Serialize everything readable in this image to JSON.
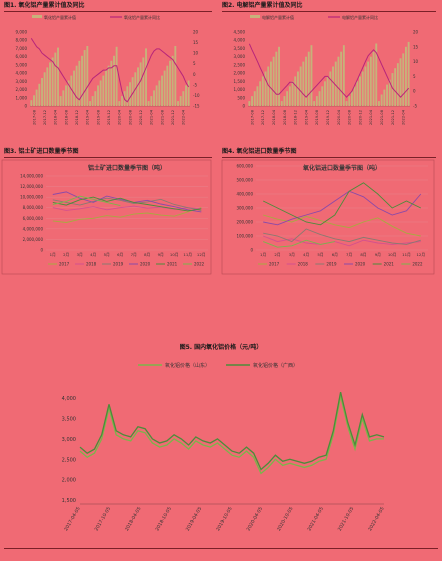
{
  "colors": {
    "background": "#f06a74",
    "bar": "#c7b27a",
    "line_magenta": "#b8257a",
    "line_pink": "#d4508e",
    "green_main": "#7ab64a",
    "green_dark": "#4c8c3a",
    "purple": "#8c4aa8",
    "olive": "#a8aa40",
    "gray": "#8a7a70"
  },
  "chart_data": [
    {
      "type": "bar",
      "title": "图1. 氧化铝产量累计值及同比",
      "legend": [
        "氧化铝产量累计值",
        "氧化铝产量累计同比"
      ],
      "y_left_ticks": [
        "9,000",
        "8,000",
        "7,000",
        "6,000",
        "5,000",
        "4,000",
        "3,000",
        "2,000",
        "1,000",
        "0"
      ],
      "y_right_ticks": [
        "20",
        "15",
        "10",
        "5",
        "0",
        "-5",
        "-10",
        "-15"
      ],
      "x_ticks": [
        "2017-08",
        "2017-12",
        "2018-04",
        "2018-08",
        "2018-12",
        "2019-04",
        "2019-08",
        "2019-12",
        "2020-04",
        "2020-08",
        "2020-12",
        "2021-04",
        "2021-08",
        "2021-12",
        "2022-04"
      ],
      "ylim": [
        0,
        9000
      ],
      "y2lim": [
        -15,
        20
      ],
      "bars": [
        700,
        1300,
        2000,
        2700,
        3400,
        4100,
        4700,
        5300,
        5900,
        6500,
        7100,
        1200,
        1900,
        2500,
        3100,
        3700,
        4300,
        4900,
        5500,
        6100,
        6800,
        7300,
        600,
        1200,
        1800,
        2500,
        3100,
        3700,
        4300,
        4900,
        5500,
        6100,
        7200,
        600,
        1200,
        1800,
        2400,
        2900,
        3500,
        4100,
        4700,
        5300,
        5900,
        7000,
        600,
        1200,
        1900,
        2500,
        3100,
        3700,
        4300,
        4900,
        5500,
        6100,
        7300,
        600,
        1200,
        1800,
        2500,
        3100
      ],
      "line": [
        17,
        15,
        13,
        12,
        10,
        9,
        8,
        7,
        6,
        4,
        3,
        1,
        -1,
        -3,
        -5,
        -7,
        -9,
        -11,
        -12,
        -10,
        -8,
        -6,
        -4,
        -2,
        -1,
        0,
        1,
        2,
        2,
        3,
        3,
        4,
        4,
        -2,
        -8,
        -12,
        -13,
        -11,
        -9,
        -7,
        -5,
        -3,
        0,
        3,
        6,
        9,
        11,
        12,
        12,
        11,
        10,
        9,
        8,
        7,
        5,
        3,
        1,
        -1,
        -4,
        -6
      ]
    },
    {
      "type": "bar",
      "title": "图2. 电解铝产量累计值及同比",
      "legend": [
        "电解铝产量累计值",
        "电解铝产量累计同比"
      ],
      "y_left_ticks": [
        "4,500",
        "4,000",
        "3,500",
        "3,000",
        "2,500",
        "2,000",
        "1,500",
        "1,000",
        "500",
        "0"
      ],
      "y_right_ticks": [
        "20",
        "15",
        "10",
        "5",
        "0",
        "-5"
      ],
      "x_ticks": [
        "2017-08",
        "2017-12",
        "2018-04",
        "2018-08",
        "2018-12",
        "2019-04",
        "2019-08",
        "2019-12",
        "2020-04",
        "2020-08",
        "2020-12",
        "2021-04",
        "2021-08",
        "2021-12",
        "2022-04"
      ],
      "ylim": [
        0,
        4500
      ],
      "y2lim": [
        -5,
        20
      ],
      "bars": [
        300,
        600,
        900,
        1200,
        1500,
        1800,
        2100,
        2400,
        2700,
        3000,
        3300,
        3600,
        300,
        600,
        900,
        1200,
        1500,
        1800,
        2100,
        2400,
        2700,
        3000,
        3300,
        3700,
        300,
        600,
        900,
        1200,
        1500,
        1800,
        2100,
        2400,
        2700,
        3000,
        3300,
        3700,
        300,
        600,
        900,
        1200,
        1500,
        1800,
        2100,
        2400,
        2700,
        3000,
        3300,
        3800,
        300,
        700,
        1000,
        1300,
        1600,
        2000,
        2300,
        2600,
        2900,
        3200,
        3600,
        3900
      ],
      "line": [
        16,
        14,
        12,
        10,
        8,
        6,
        4,
        2,
        1,
        0,
        -1,
        -1,
        0,
        1,
        2,
        3,
        3,
        2,
        1,
        0,
        -1,
        -2,
        -1,
        0,
        1,
        2,
        3,
        4,
        5,
        5,
        4,
        3,
        2,
        1,
        0,
        -1,
        -2,
        -1,
        0,
        2,
        4,
        6,
        8,
        10,
        12,
        13,
        14,
        13,
        11,
        9,
        7,
        5,
        3,
        1,
        0,
        -1,
        -2,
        -1,
        0,
        1
      ]
    },
    {
      "type": "line",
      "title": "图3. 铝土矿进口数量季节图",
      "subtitle": "铝土矿进口数量季节图（吨）",
      "y_ticks": [
        "14,000,000",
        "12,000,000",
        "10,000,000",
        "8,000,000",
        "6,000,000",
        "4,000,000",
        "2,000,000",
        "0"
      ],
      "ylim": [
        0,
        14000000
      ],
      "categories": [
        "1月",
        "2月",
        "3月",
        "4月",
        "5月",
        "6月",
        "7月",
        "8月",
        "9月",
        "10月",
        "11月",
        "12月"
      ],
      "series": [
        {
          "name": "2017",
          "values": [
            5500000,
            5200000,
            5800000,
            6000000,
            6500000,
            6200000,
            6800000,
            7000000,
            6600000,
            6400000,
            7200000,
            8000000
          ]
        },
        {
          "name": "2018",
          "values": [
            8000000,
            7500000,
            7800000,
            8200000,
            7600000,
            8000000,
            8300000,
            7900000,
            8100000,
            7700000,
            8000000,
            7800000
          ]
        },
        {
          "name": "2019",
          "values": [
            9500000,
            9000000,
            8500000,
            9200000,
            9800000,
            9400000,
            8800000,
            9100000,
            9600000,
            8600000,
            8000000,
            7500000
          ]
        },
        {
          "name": "2020",
          "values": [
            10500000,
            11000000,
            9800000,
            9000000,
            10200000,
            9600000,
            9000000,
            9400000,
            8700000,
            8200000,
            7600000,
            7200000
          ]
        },
        {
          "name": "2021",
          "values": [
            9000000,
            8500000,
            9500000,
            10000000,
            9200000,
            9800000,
            9000000,
            8600000,
            8200000,
            7800000,
            7400000,
            7800000
          ]
        },
        {
          "name": "2022",
          "values": [
            8600000,
            9200000,
            10200000,
            9600000,
            9000000,
            8400000,
            null,
            null,
            null,
            null,
            null,
            null
          ]
        }
      ]
    },
    {
      "type": "line",
      "title": "图4. 氧化铝进口数量季节图",
      "subtitle": "氧化铝进口数量季节图（吨）",
      "y_ticks": [
        "600,000",
        "500,000",
        "400,000",
        "300,000",
        "200,000",
        "100,000",
        "0"
      ],
      "ylim": [
        0,
        600000
      ],
      "categories": [
        "1月",
        "2月",
        "3月",
        "4月",
        "5月",
        "6月",
        "7月",
        "8月",
        "9月",
        "10月",
        "11月",
        "12月"
      ],
      "series": [
        {
          "name": "2017",
          "values": [
            250000,
            220000,
            200000,
            240000,
            210000,
            180000,
            160000,
            200000,
            230000,
            170000,
            120000,
            100000
          ]
        },
        {
          "name": "2018",
          "values": [
            100000,
            60000,
            80000,
            50000,
            40000,
            60000,
            30000,
            70000,
            50000,
            40000,
            50000,
            60000
          ]
        },
        {
          "name": "2019",
          "values": [
            120000,
            100000,
            60000,
            150000,
            110000,
            80000,
            60000,
            90000,
            70000,
            50000,
            40000,
            70000
          ]
        },
        {
          "name": "2020",
          "values": [
            200000,
            180000,
            220000,
            250000,
            280000,
            350000,
            420000,
            380000,
            300000,
            250000,
            280000,
            400000
          ]
        },
        {
          "name": "2021",
          "values": [
            350000,
            300000,
            250000,
            200000,
            180000,
            250000,
            420000,
            480000,
            400000,
            300000,
            350000,
            300000
          ]
        },
        {
          "name": "2022",
          "values": [
            60000,
            20000,
            30000,
            70000,
            40000,
            60000,
            null,
            null,
            null,
            null,
            null,
            null
          ]
        }
      ]
    },
    {
      "type": "line",
      "title": "图5. 国内氧化铝价格（元/吨）",
      "y_ticks": [
        "4,000",
        "3,500",
        "3,000",
        "2,500",
        "2,000",
        "1,500"
      ],
      "ylim": [
        1500,
        4250
      ],
      "x_ticks": [
        "2017-04-05",
        "2017-10-05",
        "2018-04-05",
        "2018-10-05",
        "2019-04-05",
        "2019-10-05",
        "2020-04-05",
        "2020-10-05",
        "2021-04-05",
        "2021-10-05",
        "2022-04-05"
      ],
      "series": [
        {
          "name": "氧化铝价格（山东）",
          "values": [
            2700,
            2550,
            2650,
            3000,
            3750,
            3100,
            3000,
            2950,
            3200,
            3150,
            2900,
            2800,
            2850,
            3000,
            2900,
            2750,
            2950,
            2850,
            2800,
            2900,
            2750,
            2600,
            2550,
            2700,
            2550,
            2150,
            2300,
            2500,
            2350,
            2400,
            2350,
            2300,
            2350,
            2450,
            2500,
            3100,
            4050,
            3300,
            2750,
            3500,
            2950,
            3000,
            3000
          ]
        },
        {
          "name": "氧化铝价格（广西）",
          "values": [
            2800,
            2650,
            2750,
            3100,
            3850,
            3200,
            3100,
            3050,
            3300,
            3250,
            3000,
            2900,
            2950,
            3100,
            3000,
            2850,
            3050,
            2950,
            2900,
            3000,
            2850,
            2700,
            2650,
            2800,
            2650,
            2250,
            2400,
            2600,
            2450,
            2500,
            2450,
            2400,
            2450,
            2550,
            2600,
            3200,
            4150,
            3400,
            2850,
            3600,
            3050,
            3100,
            3050
          ]
        }
      ]
    }
  ]
}
